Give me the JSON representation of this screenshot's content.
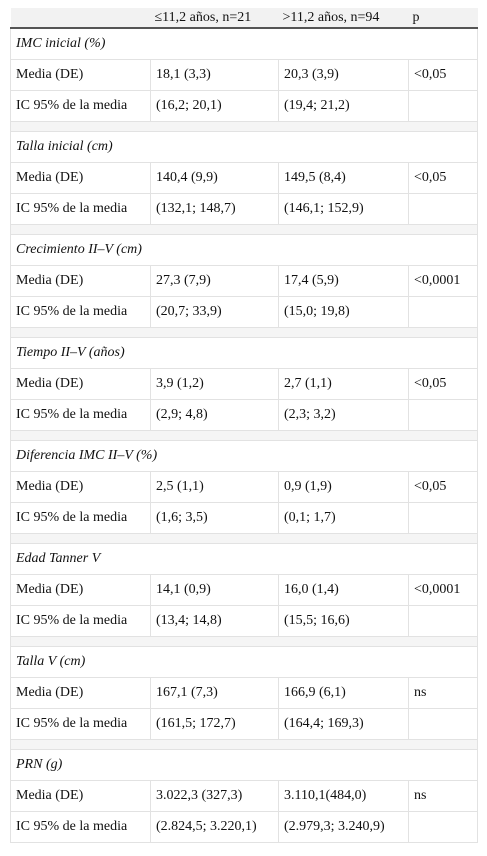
{
  "table": {
    "header": [
      "≤11,2 años, n=21",
      ">11,2 años, n=94",
      "p"
    ],
    "groups": [
      {
        "title": "IMC inicial (%)",
        "rows": [
          [
            "Media (DE)",
            "18,1 (3,3)",
            "20,3 (3,9)",
            "<0,05"
          ],
          [
            "IC 95% de la media",
            "(16,2; 20,1)",
            "(19,4; 21,2)"
          ]
        ]
      },
      {
        "title": "Talla inicial (cm)",
        "rows": [
          [
            "Media (DE)",
            "140,4 (9,9)",
            "149,5 (8,4)",
            "<0,05"
          ],
          [
            "IC 95% de la media",
            "(132,1; 148,7)",
            "(146,1; 152,9)"
          ]
        ]
      },
      {
        "title": "Crecimiento II–V (cm)",
        "rows": [
          [
            "Media (DE)",
            "27,3 (7,9)",
            "17,4 (5,9)",
            "<0,0001"
          ],
          [
            "IC 95% de la media",
            "(20,7; 33,9)",
            "(15,0; 19,8)"
          ]
        ]
      },
      {
        "title": "Tiempo II–V (años)",
        "rows": [
          [
            "Media (DE)",
            "3,9 (1,2)",
            "2,7 (1,1)",
            "<0,05"
          ],
          [
            "IC 95% de la media",
            "(2,9; 4,8)",
            "(2,3; 3,2)"
          ]
        ]
      },
      {
        "title": "Diferencia IMC II–V (%)",
        "rows": [
          [
            "Media (DE)",
            "2,5 (1,1)",
            "0,9 (1,9)",
            "<0,05"
          ],
          [
            "IC 95% de la media",
            "(1,6; 3,5)",
            "(0,1; 1,7)"
          ]
        ]
      },
      {
        "title": "Edad Tanner V",
        "rows": [
          [
            "Media (DE)",
            "14,1 (0,9)",
            "16,0 (1,4)",
            "<0,0001"
          ],
          [
            "IC 95% de la media",
            "(13,4; 14,8)",
            "(15,5; 16,6)"
          ]
        ]
      },
      {
        "title": "Talla V (cm)",
        "rows": [
          [
            "Media (DE)",
            "167,1 (7,3)",
            "166,9 (6,1)",
            "ns"
          ],
          [
            "IC 95% de la media",
            "(161,5; 172,7)",
            "(164,4; 169,3)"
          ]
        ]
      },
      {
        "title": "PRN (g)",
        "rows": [
          [
            "Media (DE)",
            "3.022,3 (327,3)",
            "3.110,1(484,0)",
            "ns"
          ],
          [
            "IC 95% de la media",
            "(2.824,5; 3.220,1)",
            "(2.979,3; 3.240,9)"
          ]
        ]
      }
    ]
  }
}
